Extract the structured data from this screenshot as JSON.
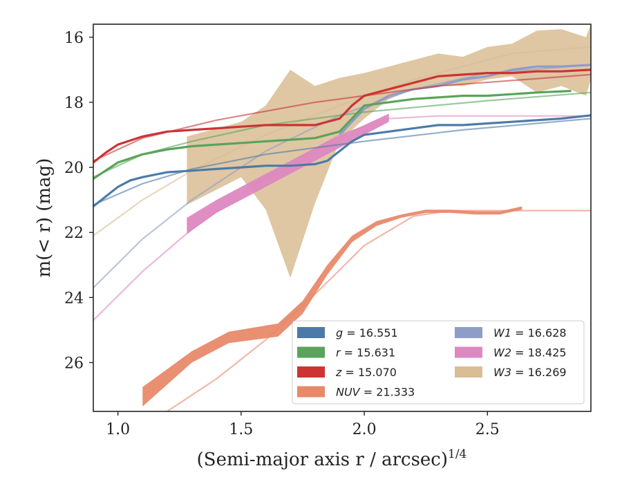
{
  "chart_data": {
    "type": "line",
    "xlabel": "(Semi-major axis r / arcsec)",
    "xlabel_superscript": "1/4",
    "ylabel": "m(< r) (mag)",
    "xlim": [
      0.9,
      2.92
    ],
    "ylim": [
      27.5,
      15.6
    ],
    "x_ticks": [
      1.0,
      1.5,
      2.0,
      2.5
    ],
    "x_tick_labels": [
      "1.0",
      "1.5",
      "2.0",
      "2.5"
    ],
    "y_ticks": [
      16,
      18,
      20,
      22,
      24,
      26
    ],
    "y_tick_labels": [
      "16",
      "18",
      "20",
      "22",
      "24",
      "26"
    ],
    "grid": false,
    "legend_placement": "lower-right",
    "series": [
      {
        "name": "g = 16.551",
        "label_var": "g",
        "label_val": "16.551",
        "color": "#4c7aa8",
        "data": [
          [
            0.9,
            21.2
          ],
          [
            0.95,
            20.9
          ],
          [
            1.0,
            20.6
          ],
          [
            1.05,
            20.4
          ],
          [
            1.1,
            20.3
          ],
          [
            1.2,
            20.15
          ],
          [
            1.3,
            20.1
          ],
          [
            1.4,
            20.05
          ],
          [
            1.5,
            20.0
          ],
          [
            1.6,
            19.95
          ],
          [
            1.7,
            19.95
          ],
          [
            1.8,
            19.9
          ],
          [
            1.85,
            19.8
          ],
          [
            1.9,
            19.5
          ],
          [
            1.95,
            19.2
          ],
          [
            2.0,
            19.0
          ],
          [
            2.1,
            18.9
          ],
          [
            2.2,
            18.8
          ],
          [
            2.3,
            18.7
          ],
          [
            2.4,
            18.7
          ],
          [
            2.5,
            18.65
          ],
          [
            2.6,
            18.6
          ],
          [
            2.7,
            18.55
          ],
          [
            2.8,
            18.5
          ],
          [
            2.92,
            18.4
          ]
        ],
        "model": [
          [
            0.9,
            21.15
          ],
          [
            1.1,
            20.5
          ],
          [
            1.3,
            20.05
          ],
          [
            1.6,
            19.6
          ],
          [
            2.0,
            19.2
          ],
          [
            2.4,
            18.85
          ],
          [
            2.92,
            18.5
          ]
        ]
      },
      {
        "name": "r = 15.631",
        "label_var": "r",
        "label_val": "15.631",
        "color": "#5aa35a",
        "data": [
          [
            0.9,
            20.35
          ],
          [
            1.0,
            19.85
          ],
          [
            1.1,
            19.6
          ],
          [
            1.2,
            19.45
          ],
          [
            1.3,
            19.35
          ],
          [
            1.4,
            19.3
          ],
          [
            1.5,
            19.25
          ],
          [
            1.6,
            19.2
          ],
          [
            1.7,
            19.15
          ],
          [
            1.8,
            19.1
          ],
          [
            1.9,
            18.9
          ],
          [
            1.95,
            18.5
          ],
          [
            2.0,
            18.1
          ],
          [
            2.1,
            18.0
          ],
          [
            2.2,
            17.9
          ],
          [
            2.3,
            17.85
          ],
          [
            2.4,
            17.8
          ],
          [
            2.5,
            17.8
          ],
          [
            2.6,
            17.75
          ],
          [
            2.7,
            17.7
          ],
          [
            2.84,
            17.65
          ]
        ],
        "model": [
          [
            0.9,
            20.3
          ],
          [
            1.1,
            19.6
          ],
          [
            1.3,
            19.2
          ],
          [
            1.6,
            18.7
          ],
          [
            2.0,
            18.3
          ],
          [
            2.5,
            17.95
          ],
          [
            2.92,
            17.7
          ]
        ]
      },
      {
        "name": "z = 15.070",
        "label_var": "z",
        "label_val": "15.070",
        "color": "#cc3333",
        "data": [
          [
            0.9,
            19.85
          ],
          [
            0.95,
            19.55
          ],
          [
            1.0,
            19.3
          ],
          [
            1.1,
            19.05
          ],
          [
            1.2,
            18.9
          ],
          [
            1.3,
            18.85
          ],
          [
            1.4,
            18.8
          ],
          [
            1.5,
            18.75
          ],
          [
            1.6,
            18.7
          ],
          [
            1.7,
            18.7
          ],
          [
            1.8,
            18.7
          ],
          [
            1.9,
            18.5
          ],
          [
            1.95,
            18.1
          ],
          [
            2.0,
            17.8
          ],
          [
            2.1,
            17.6
          ],
          [
            2.2,
            17.4
          ],
          [
            2.3,
            17.2
          ],
          [
            2.4,
            17.15
          ],
          [
            2.5,
            17.1
          ],
          [
            2.6,
            17.1
          ],
          [
            2.7,
            17.05
          ],
          [
            2.8,
            17.05
          ],
          [
            2.92,
            17.0
          ]
        ],
        "model": [
          [
            0.9,
            19.8
          ],
          [
            1.1,
            19.1
          ],
          [
            1.4,
            18.55
          ],
          [
            1.8,
            18.0
          ],
          [
            2.3,
            17.5
          ],
          [
            2.92,
            17.15
          ]
        ]
      },
      {
        "name": "NUV = 21.333",
        "label_var": "NUV",
        "label_val": "21.333",
        "color": "#e8896a",
        "band": [
          [
            1.1,
            26.75,
            27.35
          ],
          [
            1.3,
            25.65,
            26.0
          ],
          [
            1.45,
            25.05,
            25.4
          ],
          [
            1.65,
            24.8,
            25.2
          ],
          [
            1.75,
            24.1,
            24.5
          ],
          [
            1.85,
            23.0,
            23.3
          ],
          [
            1.95,
            22.1,
            22.3
          ],
          [
            2.05,
            21.65,
            21.8
          ],
          [
            2.15,
            21.45,
            21.55
          ],
          [
            2.25,
            21.3,
            21.4
          ],
          [
            2.35,
            21.3,
            21.4
          ],
          [
            2.45,
            21.35,
            21.45
          ],
          [
            2.55,
            21.35,
            21.45
          ],
          [
            2.64,
            21.2,
            21.3
          ]
        ],
        "model": [
          [
            1.2,
            27.5
          ],
          [
            1.4,
            26.5
          ],
          [
            1.6,
            25.3
          ],
          [
            1.8,
            23.9
          ],
          [
            2.0,
            22.4
          ],
          [
            2.2,
            21.5
          ],
          [
            2.35,
            21.33
          ],
          [
            2.92,
            21.33
          ]
        ]
      },
      {
        "name": "W1 = 16.628",
        "label_var": "W1",
        "label_val": "16.628",
        "color": "#8e9cc8",
        "data": [
          [
            1.9,
            19.0
          ],
          [
            2.0,
            18.2
          ],
          [
            2.1,
            17.8
          ],
          [
            2.2,
            17.6
          ],
          [
            2.3,
            17.5
          ],
          [
            2.4,
            17.3
          ],
          [
            2.5,
            17.2
          ],
          [
            2.6,
            17.0
          ],
          [
            2.7,
            16.9
          ],
          [
            2.8,
            16.9
          ],
          [
            2.92,
            16.85
          ]
        ],
        "model": [
          [
            0.9,
            23.7
          ],
          [
            1.1,
            22.2
          ],
          [
            1.3,
            21.0
          ],
          [
            1.6,
            19.5
          ],
          [
            1.9,
            18.4
          ],
          [
            2.2,
            17.6
          ],
          [
            2.5,
            17.1
          ],
          [
            2.92,
            16.85
          ]
        ]
      },
      {
        "name": "W2 = 18.425",
        "label_var": "W2",
        "label_val": "18.425",
        "color": "#dd88c0",
        "band": [
          [
            1.28,
            21.55,
            22.05
          ],
          [
            1.4,
            21.0,
            21.4
          ],
          [
            1.55,
            20.4,
            20.8
          ],
          [
            1.7,
            19.8,
            20.2
          ],
          [
            1.85,
            19.2,
            19.6
          ],
          [
            2.0,
            18.7,
            19.0
          ],
          [
            2.1,
            18.35,
            18.6
          ]
        ],
        "model": [
          [
            0.9,
            24.7
          ],
          [
            1.1,
            23.2
          ],
          [
            1.3,
            21.9
          ],
          [
            1.6,
            20.3
          ],
          [
            1.9,
            19.0
          ],
          [
            2.1,
            18.5
          ],
          [
            2.3,
            18.42
          ],
          [
            2.92,
            18.42
          ]
        ]
      },
      {
        "name": "W3 = 16.269",
        "label_var": "W3",
        "label_val": "16.269",
        "color": "#d9bd94",
        "band": [
          [
            1.28,
            19.05,
            21.15
          ],
          [
            1.5,
            18.6,
            20.3
          ],
          [
            1.6,
            18.1,
            21.3
          ],
          [
            1.7,
            17.0,
            23.4
          ],
          [
            1.8,
            17.5,
            21.1
          ],
          [
            1.9,
            17.25,
            19.2
          ],
          [
            2.0,
            17.1,
            18.5
          ],
          [
            2.1,
            16.9,
            17.9
          ],
          [
            2.2,
            16.7,
            17.6
          ],
          [
            2.3,
            16.5,
            17.5
          ],
          [
            2.4,
            16.6,
            17.5
          ],
          [
            2.5,
            16.3,
            17.3
          ],
          [
            2.6,
            16.2,
            17.2
          ],
          [
            2.7,
            15.8,
            17.7
          ],
          [
            2.8,
            15.75,
            17.5
          ],
          [
            2.9,
            16.0,
            17.8
          ],
          [
            2.92,
            15.6,
            17.3
          ]
        ],
        "model": [
          [
            0.9,
            22.1
          ],
          [
            1.1,
            21.0
          ],
          [
            1.3,
            20.1
          ],
          [
            1.6,
            19.0
          ],
          [
            1.9,
            18.1
          ],
          [
            2.2,
            17.3
          ],
          [
            2.6,
            16.5
          ],
          [
            2.92,
            16.3
          ]
        ]
      }
    ]
  }
}
